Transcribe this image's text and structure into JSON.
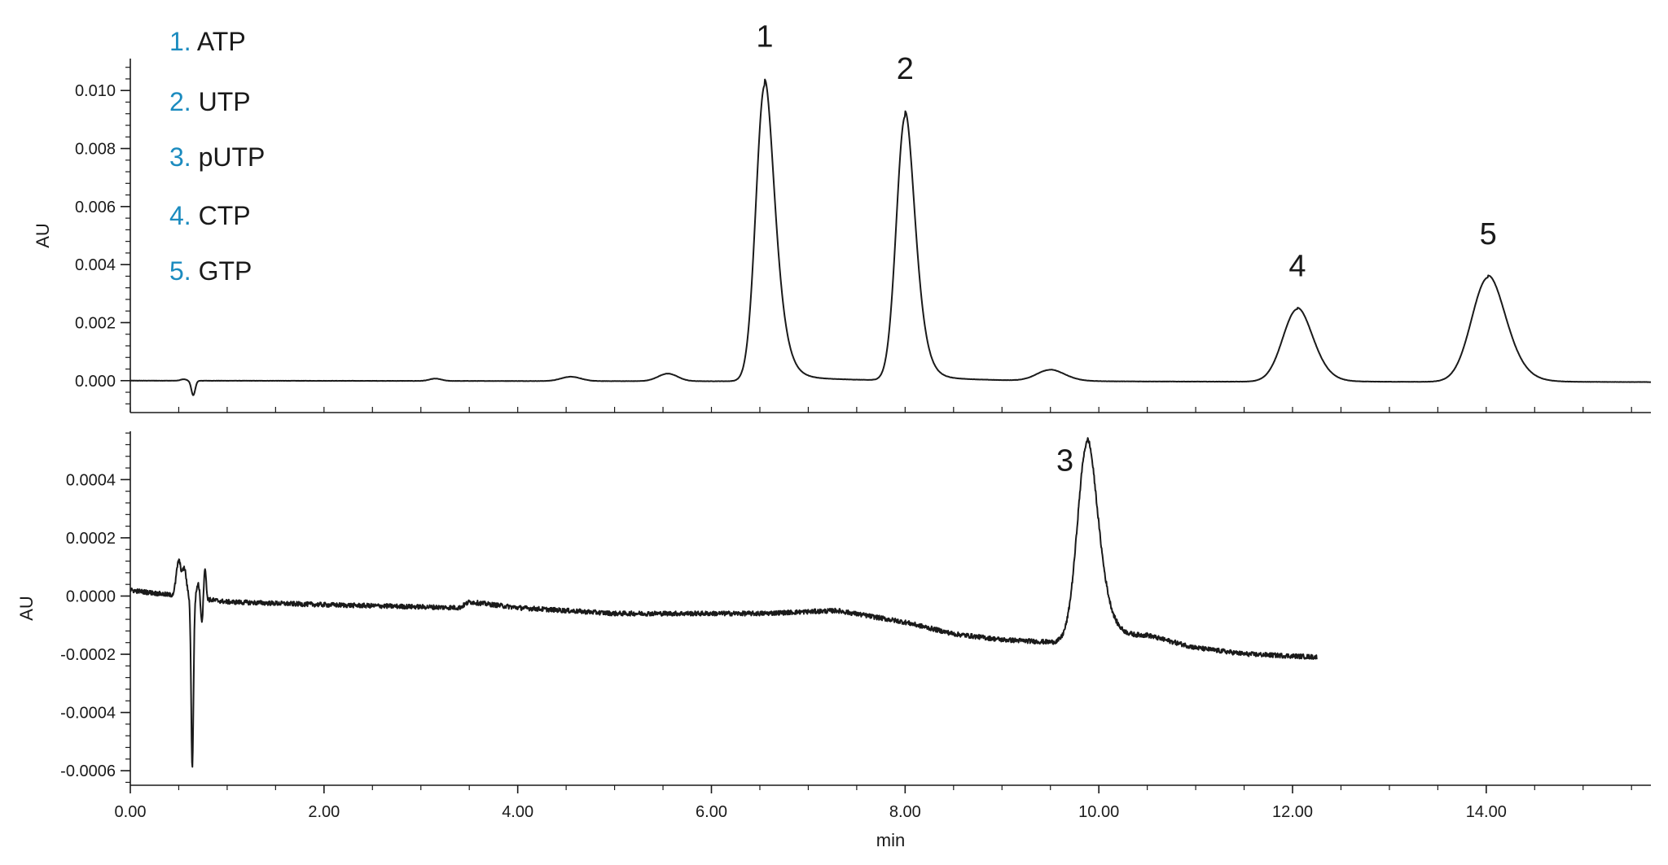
{
  "colors": {
    "trace": "#1a1a1a",
    "axis": "#1a1a1a",
    "legend_number": "#1b8bbf",
    "legend_text": "#1a1a1a"
  },
  "legend": [
    {
      "num": "1.",
      "label": "ATP"
    },
    {
      "num": "2.",
      "label": "UTP"
    },
    {
      "num": "3.",
      "label": "pUTP"
    },
    {
      "num": "4.",
      "label": "CTP"
    },
    {
      "num": "5.",
      "label": "GTP"
    }
  ],
  "chart_data": [
    {
      "type": "line",
      "panel": "top",
      "ylabel": "AU",
      "ylim": [
        -0.0011,
        0.0111
      ],
      "y_ticks": [
        "0.000",
        "0.002",
        "0.004",
        "0.006",
        "0.008",
        "0.010"
      ],
      "y_tick_values": [
        0,
        0.002,
        0.004,
        0.006,
        0.008,
        0.01
      ],
      "xlim": [
        0,
        15.7
      ],
      "x_end": 15.7,
      "baseline_tilt": 5e-05,
      "noise": 4e-06,
      "peaks": [
        {
          "x": 0.55,
          "height": 5e-05,
          "width": 0.03,
          "tail": 0
        },
        {
          "x": 0.65,
          "height": -0.0005,
          "width": 0.02,
          "tail": 0
        },
        {
          "x": 3.15,
          "height": 8e-05,
          "width": 0.06,
          "tail": 0
        },
        {
          "x": 4.55,
          "height": 0.00015,
          "width": 0.1,
          "tail": 0
        },
        {
          "x": 5.55,
          "height": 0.00026,
          "width": 0.1,
          "tail": 0
        },
        {
          "x": 6.55,
          "height": 0.0102,
          "width": 0.09,
          "tail": 0.25
        },
        {
          "x": 8.0,
          "height": 0.0091,
          "width": 0.09,
          "tail": 0.22
        },
        {
          "x": 9.5,
          "height": 0.00038,
          "width": 0.14,
          "tail": 0.1
        },
        {
          "x": 12.05,
          "height": 0.0025,
          "width": 0.15,
          "tail": 0.12
        },
        {
          "x": 14.02,
          "height": 0.0036,
          "width": 0.17,
          "tail": 0.14
        }
      ],
      "annotations": [
        {
          "text": "1",
          "x": 6.55,
          "y": 0.0115
        },
        {
          "text": "2",
          "x": 8.0,
          "y": 0.0104
        },
        {
          "text": "4",
          "x": 12.05,
          "y": 0.0036
        },
        {
          "text": "5",
          "x": 14.02,
          "y": 0.0047
        }
      ]
    },
    {
      "type": "line",
      "panel": "bottom",
      "ylabel": "AU",
      "xlabel": "min",
      "ylim": [
        -0.00065,
        0.00058
      ],
      "y_ticks": [
        "-0.0006",
        "-0.0004",
        "-0.0002",
        "0.0000",
        "0.0002",
        "0.0004"
      ],
      "y_tick_values": [
        -0.0006,
        -0.0004,
        -0.0002,
        0,
        0.0002,
        0.0004
      ],
      "xlim": [
        0,
        15.7
      ],
      "x_end": 12.25,
      "x_ticks": [
        "0.00",
        "2.00",
        "4.00",
        "6.00",
        "8.00",
        "10.00",
        "12.00",
        "14.00"
      ],
      "x_tick_values": [
        0,
        2,
        4,
        6,
        8,
        10,
        12,
        14
      ],
      "baseline": [
        [
          0,
          2e-05
        ],
        [
          0.5,
          0.0
        ],
        [
          1.0,
          -2e-05
        ],
        [
          2.0,
          -3e-05
        ],
        [
          3.4,
          -4e-05
        ],
        [
          3.5,
          -2e-05
        ],
        [
          4.0,
          -4e-05
        ],
        [
          5.0,
          -6e-05
        ],
        [
          6.0,
          -6e-05
        ],
        [
          6.5,
          -6e-05
        ],
        [
          7.3,
          -5e-05
        ],
        [
          8.0,
          -9e-05
        ],
        [
          8.5,
          -0.00013
        ],
        [
          9.0,
          -0.00015
        ],
        [
          9.6,
          -0.00016
        ],
        [
          10.5,
          -0.00014
        ],
        [
          11.0,
          -0.00018
        ],
        [
          11.5,
          -0.0002
        ],
        [
          12.25,
          -0.00021
        ]
      ],
      "noise": 8e-06,
      "peaks": [
        {
          "x": 0.5,
          "height": 0.00012,
          "width": 0.025,
          "tail": 0
        },
        {
          "x": 0.56,
          "height": 9e-05,
          "width": 0.02,
          "tail": 0
        },
        {
          "x": 0.64,
          "height": -0.00058,
          "width": 0.012,
          "tail": 0
        },
        {
          "x": 0.7,
          "height": 5e-05,
          "width": 0.015,
          "tail": 0
        },
        {
          "x": 0.74,
          "height": -8e-05,
          "width": 0.012,
          "tail": 0
        },
        {
          "x": 0.77,
          "height": 0.00011,
          "width": 0.012,
          "tail": 0
        },
        {
          "x": 9.88,
          "height": 0.00068,
          "width": 0.1,
          "tail": 0.22
        }
      ],
      "annotations": [
        {
          "text": "3",
          "x": 9.65,
          "y": 0.00043
        }
      ]
    }
  ]
}
